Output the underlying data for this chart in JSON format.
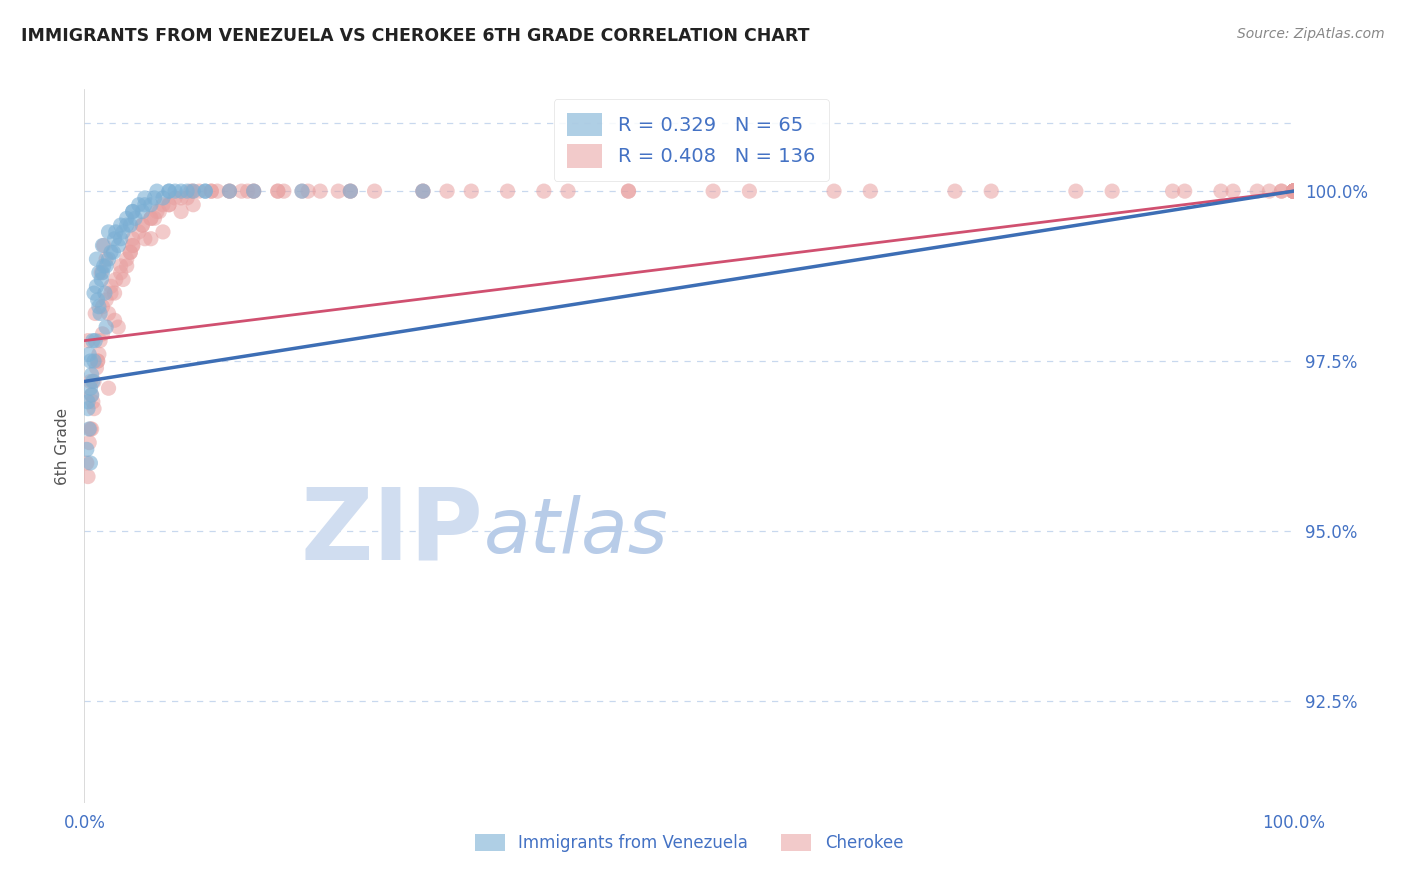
{
  "title": "IMMIGRANTS FROM VENEZUELA VS CHEROKEE 6TH GRADE CORRELATION CHART",
  "source": "Source: ZipAtlas.com",
  "ylabel": "6th Grade",
  "y_ticks": [
    92.5,
    95.0,
    97.5,
    100.0
  ],
  "y_tick_labels": [
    "92.5%",
    "95.0%",
    "97.5%",
    "100.0%"
  ],
  "x_range": [
    0.0,
    100.0
  ],
  "y_range": [
    91.0,
    101.5
  ],
  "blue_R": 0.329,
  "blue_N": 65,
  "pink_R": 0.408,
  "pink_N": 136,
  "blue_color": "#7bafd4",
  "pink_color": "#e8a0a0",
  "blue_line_color": "#3d6eb5",
  "pink_line_color": "#d05070",
  "legend_label_blue": "Immigrants from Venezuela",
  "legend_label_pink": "Cherokee",
  "watermark_zip": "ZIP",
  "watermark_atlas": "atlas",
  "watermark_zip_color": "#d0ddf0",
  "watermark_atlas_color": "#b8cce8",
  "background_color": "#ffffff",
  "title_color": "#222222",
  "tick_label_color": "#4472c4",
  "grid_color": "#c8d8ee",
  "blue_scatter_x": [
    0.5,
    0.8,
    1.0,
    1.2,
    1.5,
    0.3,
    2.0,
    1.8,
    0.7,
    2.5,
    0.4,
    1.3,
    0.6,
    2.2,
    1.0,
    0.2,
    3.0,
    1.6,
    0.9,
    3.5,
    0.5,
    1.1,
    4.0,
    2.8,
    0.8,
    3.2,
    1.4,
    4.5,
    0.3,
    2.0,
    5.0,
    1.7,
    0.6,
    3.8,
    6.0,
    2.4,
    0.4,
    4.8,
    7.0,
    1.5,
    5.5,
    3.0,
    0.7,
    6.5,
    8.0,
    2.6,
    1.2,
    7.5,
    9.0,
    4.2,
    5.8,
    1.8,
    10.0,
    3.5,
    7.0,
    12.0,
    5.0,
    0.5,
    14.0,
    8.5,
    4.0,
    18.0,
    10.0,
    22.0,
    28.0
  ],
  "blue_scatter_y": [
    97.5,
    98.5,
    99.0,
    98.8,
    99.2,
    96.8,
    99.4,
    98.0,
    97.2,
    99.3,
    96.5,
    98.2,
    97.0,
    99.1,
    98.6,
    96.2,
    99.5,
    98.9,
    97.8,
    99.6,
    97.1,
    98.4,
    99.7,
    99.2,
    97.5,
    99.4,
    98.7,
    99.8,
    96.9,
    99.0,
    99.9,
    98.5,
    97.3,
    99.5,
    100.0,
    99.1,
    97.6,
    99.7,
    100.0,
    98.8,
    99.8,
    99.3,
    97.8,
    99.9,
    100.0,
    99.4,
    98.3,
    100.0,
    100.0,
    99.6,
    99.9,
    98.9,
    100.0,
    99.5,
    100.0,
    100.0,
    99.8,
    96.0,
    100.0,
    100.0,
    99.7,
    100.0,
    100.0,
    100.0,
    100.0
  ],
  "pink_scatter_x": [
    0.3,
    0.6,
    0.9,
    1.1,
    1.4,
    0.2,
    1.8,
    0.5,
    2.2,
    0.8,
    1.6,
    2.8,
    0.4,
    3.5,
    1.2,
    0.7,
    4.0,
    2.0,
    0.3,
    4.8,
    1.5,
    3.2,
    0.6,
    5.5,
    2.5,
    1.0,
    6.0,
    3.8,
    0.5,
    7.0,
    2.2,
    4.5,
    1.3,
    8.0,
    3.0,
    5.8,
    0.8,
    9.0,
    1.8,
    6.5,
    4.0,
    10.5,
    2.6,
    7.5,
    1.1,
    12.0,
    5.0,
    3.5,
    8.8,
    14.0,
    2.0,
    6.2,
    4.8,
    16.0,
    9.5,
    1.5,
    18.5,
    7.0,
    3.8,
    11.0,
    21.0,
    5.5,
    13.5,
    2.5,
    24.0,
    8.5,
    16.0,
    4.0,
    28.0,
    10.5,
    19.5,
    6.5,
    32.0,
    13.0,
    3.0,
    22.0,
    38.0,
    8.0,
    16.5,
    45.0,
    12.0,
    5.5,
    28.0,
    52.0,
    18.0,
    9.0,
    35.0,
    62.0,
    22.0,
    14.0,
    45.0,
    72.0,
    30.0,
    55.0,
    82.0,
    40.0,
    65.0,
    90.0,
    75.0,
    95.0,
    85.0,
    98.0,
    91.0,
    99.0,
    94.0,
    100.0,
    97.0,
    100.0,
    99.0,
    100.0,
    100.0,
    100.0,
    100.0,
    100.0,
    100.0,
    100.0,
    100.0,
    100.0,
    100.0,
    100.0,
    100.0,
    100.0,
    100.0,
    100.0,
    100.0,
    100.0,
    100.0,
    100.0,
    100.0,
    100.0,
    100.0,
    100.0,
    100.0,
    100.0,
    100.0,
    100.0
  ],
  "pink_scatter_y": [
    97.8,
    96.5,
    98.2,
    97.5,
    98.8,
    96.0,
    99.0,
    97.2,
    98.5,
    96.8,
    99.2,
    98.0,
    96.3,
    98.9,
    97.6,
    96.9,
    99.3,
    97.1,
    95.8,
    99.5,
    98.3,
    98.7,
    97.0,
    99.6,
    98.1,
    97.4,
    99.7,
    99.1,
    96.5,
    99.8,
    98.6,
    99.4,
    97.8,
    99.9,
    98.9,
    99.6,
    97.2,
    100.0,
    98.4,
    99.8,
    99.2,
    100.0,
    98.7,
    99.9,
    97.5,
    100.0,
    99.3,
    99.0,
    100.0,
    100.0,
    98.2,
    99.7,
    99.5,
    100.0,
    100.0,
    97.9,
    100.0,
    99.8,
    99.1,
    100.0,
    100.0,
    99.6,
    100.0,
    98.5,
    100.0,
    99.9,
    100.0,
    99.2,
    100.0,
    100.0,
    100.0,
    99.4,
    100.0,
    100.0,
    98.8,
    100.0,
    100.0,
    99.7,
    100.0,
    100.0,
    100.0,
    99.3,
    100.0,
    100.0,
    100.0,
    99.8,
    100.0,
    100.0,
    100.0,
    100.0,
    100.0,
    100.0,
    100.0,
    100.0,
    100.0,
    100.0,
    100.0,
    100.0,
    100.0,
    100.0,
    100.0,
    100.0,
    100.0,
    100.0,
    100.0,
    100.0,
    100.0,
    100.0,
    100.0,
    100.0,
    100.0,
    100.0,
    100.0,
    100.0,
    100.0,
    100.0,
    100.0,
    100.0,
    100.0,
    100.0,
    100.0,
    100.0,
    100.0,
    100.0,
    100.0,
    100.0,
    100.0,
    100.0,
    100.0,
    100.0,
    100.0,
    100.0,
    100.0,
    100.0,
    100.0,
    100.0
  ],
  "blue_trend_x": [
    0.0,
    100.0
  ],
  "blue_trend_y_start": 97.2,
  "blue_trend_y_end": 100.0,
  "pink_trend_x": [
    0.0,
    100.0
  ],
  "pink_trend_y_start": 97.8,
  "pink_trend_y_end": 100.0
}
